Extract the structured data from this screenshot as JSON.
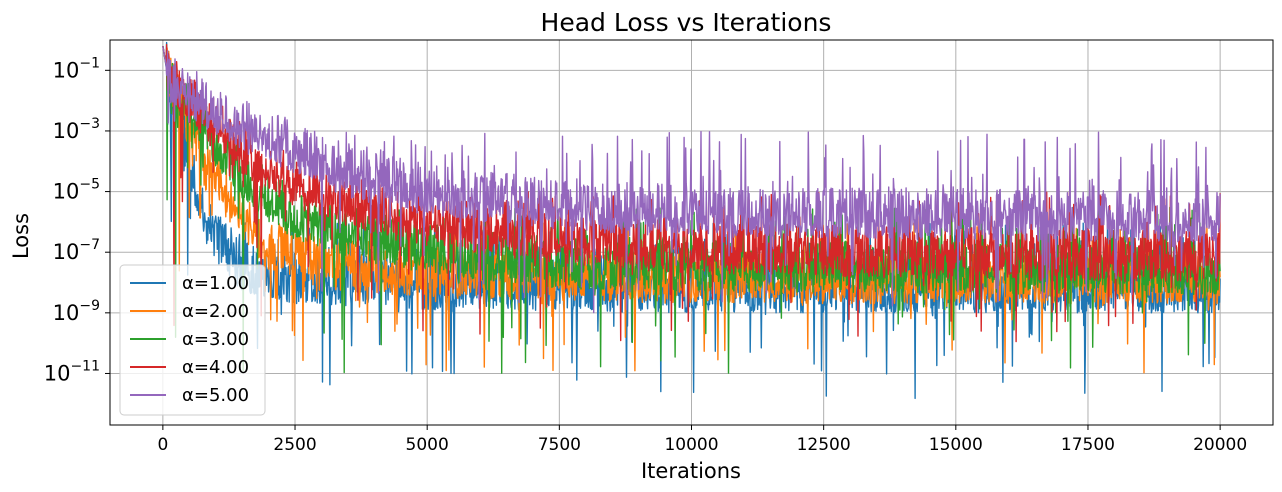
{
  "chart_data": {
    "type": "line",
    "title": "Head Loss vs Iterations",
    "xlabel": "Iterations",
    "ylabel": "Loss",
    "yscale": "log",
    "xlim": [
      -1000,
      21000
    ],
    "ylim_exponent": [
      -12.7,
      0.0
    ],
    "grid": true,
    "legend_position": "lower-left",
    "xticks": [
      0,
      2500,
      5000,
      7500,
      10000,
      12500,
      15000,
      17500,
      20000
    ],
    "xtick_labels": [
      "0",
      "2500",
      "5000",
      "7500",
      "10000",
      "12500",
      "15000",
      "17500",
      "20000"
    ],
    "yticks_exponent": [
      -1,
      -3,
      -5,
      -7,
      -9,
      -11
    ],
    "ytick_base": "10",
    "ytick_exponent_labels": [
      "−1",
      "−3",
      "−5",
      "−7",
      "−9",
      "−11"
    ],
    "series": [
      {
        "name": "α=1.00",
        "color": "#1f77b4",
        "start_loss": 0.6,
        "knee_loss": 0.05,
        "descent": [
          [
            0,
            -0.2
          ],
          [
            100,
            -1.3
          ],
          [
            300,
            -2.5
          ],
          [
            500,
            -4.0
          ],
          [
            700,
            -5.5
          ],
          [
            1000,
            -6.5
          ],
          [
            1500,
            -7.5
          ],
          [
            2500,
            -7.9
          ],
          [
            5000,
            -8.1
          ],
          [
            10000,
            -8.2
          ],
          [
            15000,
            -8.2
          ],
          [
            20000,
            -8.2
          ]
        ],
        "noise_floor_exponent": -8.4,
        "noise_spike_exponent": -6.5,
        "min_loss": 1.5e-12
      },
      {
        "name": "α=2.00",
        "color": "#ff7f0e",
        "start_loss": 0.6,
        "knee_loss": 0.06,
        "descent": [
          [
            0,
            -0.2
          ],
          [
            100,
            -1.2
          ],
          [
            500,
            -2.8
          ],
          [
            1000,
            -4.3
          ],
          [
            1500,
            -5.8
          ],
          [
            2000,
            -6.8
          ],
          [
            3000,
            -7.4
          ],
          [
            5000,
            -7.7
          ],
          [
            10000,
            -7.9
          ],
          [
            20000,
            -7.9
          ]
        ],
        "noise_floor_exponent": -8.2,
        "noise_spike_exponent": -6.5,
        "min_loss": 1e-11
      },
      {
        "name": "α=3.00",
        "color": "#2ca02c",
        "start_loss": 0.6,
        "knee_loss": 0.07,
        "descent": [
          [
            0,
            -0.2
          ],
          [
            100,
            -1.2
          ],
          [
            500,
            -2.2
          ],
          [
            1000,
            -3.4
          ],
          [
            1500,
            -4.4
          ],
          [
            2000,
            -5.2
          ],
          [
            2500,
            -5.8
          ],
          [
            3500,
            -6.4
          ],
          [
            5000,
            -6.9
          ],
          [
            7500,
            -7.4
          ],
          [
            10000,
            -7.5
          ],
          [
            20000,
            -7.6
          ]
        ],
        "noise_floor_exponent": -8.0,
        "noise_spike_exponent": -6.0,
        "min_loss": 1e-11
      },
      {
        "name": "α=4.00",
        "color": "#d62728",
        "start_loss": 0.6,
        "knee_loss": 0.07,
        "descent": [
          [
            0,
            -0.2
          ],
          [
            100,
            -1.2
          ],
          [
            500,
            -2.0
          ],
          [
            1000,
            -2.8
          ],
          [
            1500,
            -3.6
          ],
          [
            2000,
            -4.3
          ],
          [
            3000,
            -5.1
          ],
          [
            5000,
            -6.0
          ],
          [
            7500,
            -6.6
          ],
          [
            10000,
            -6.9
          ],
          [
            15000,
            -7.1
          ],
          [
            20000,
            -7.2
          ]
        ],
        "noise_floor_exponent": -7.8,
        "noise_spike_exponent": -5.5,
        "min_loss": 1e-10
      },
      {
        "name": "α=5.00",
        "color": "#9467bd",
        "start_loss": 0.6,
        "knee_loss": 0.08,
        "descent": [
          [
            0,
            -0.2
          ],
          [
            100,
            -1.2
          ],
          [
            500,
            -1.8
          ],
          [
            1000,
            -2.3
          ],
          [
            1500,
            -2.8
          ],
          [
            2000,
            -3.2
          ],
          [
            2500,
            -3.6
          ],
          [
            3500,
            -4.4
          ],
          [
            5000,
            -5.0
          ],
          [
            7500,
            -5.5
          ],
          [
            10000,
            -5.7
          ],
          [
            15000,
            -5.8
          ],
          [
            20000,
            -5.9
          ]
        ],
        "noise_floor_exponent": -7.0,
        "noise_spike_exponent": -3.5,
        "min_loss": 1e-09
      }
    ]
  }
}
